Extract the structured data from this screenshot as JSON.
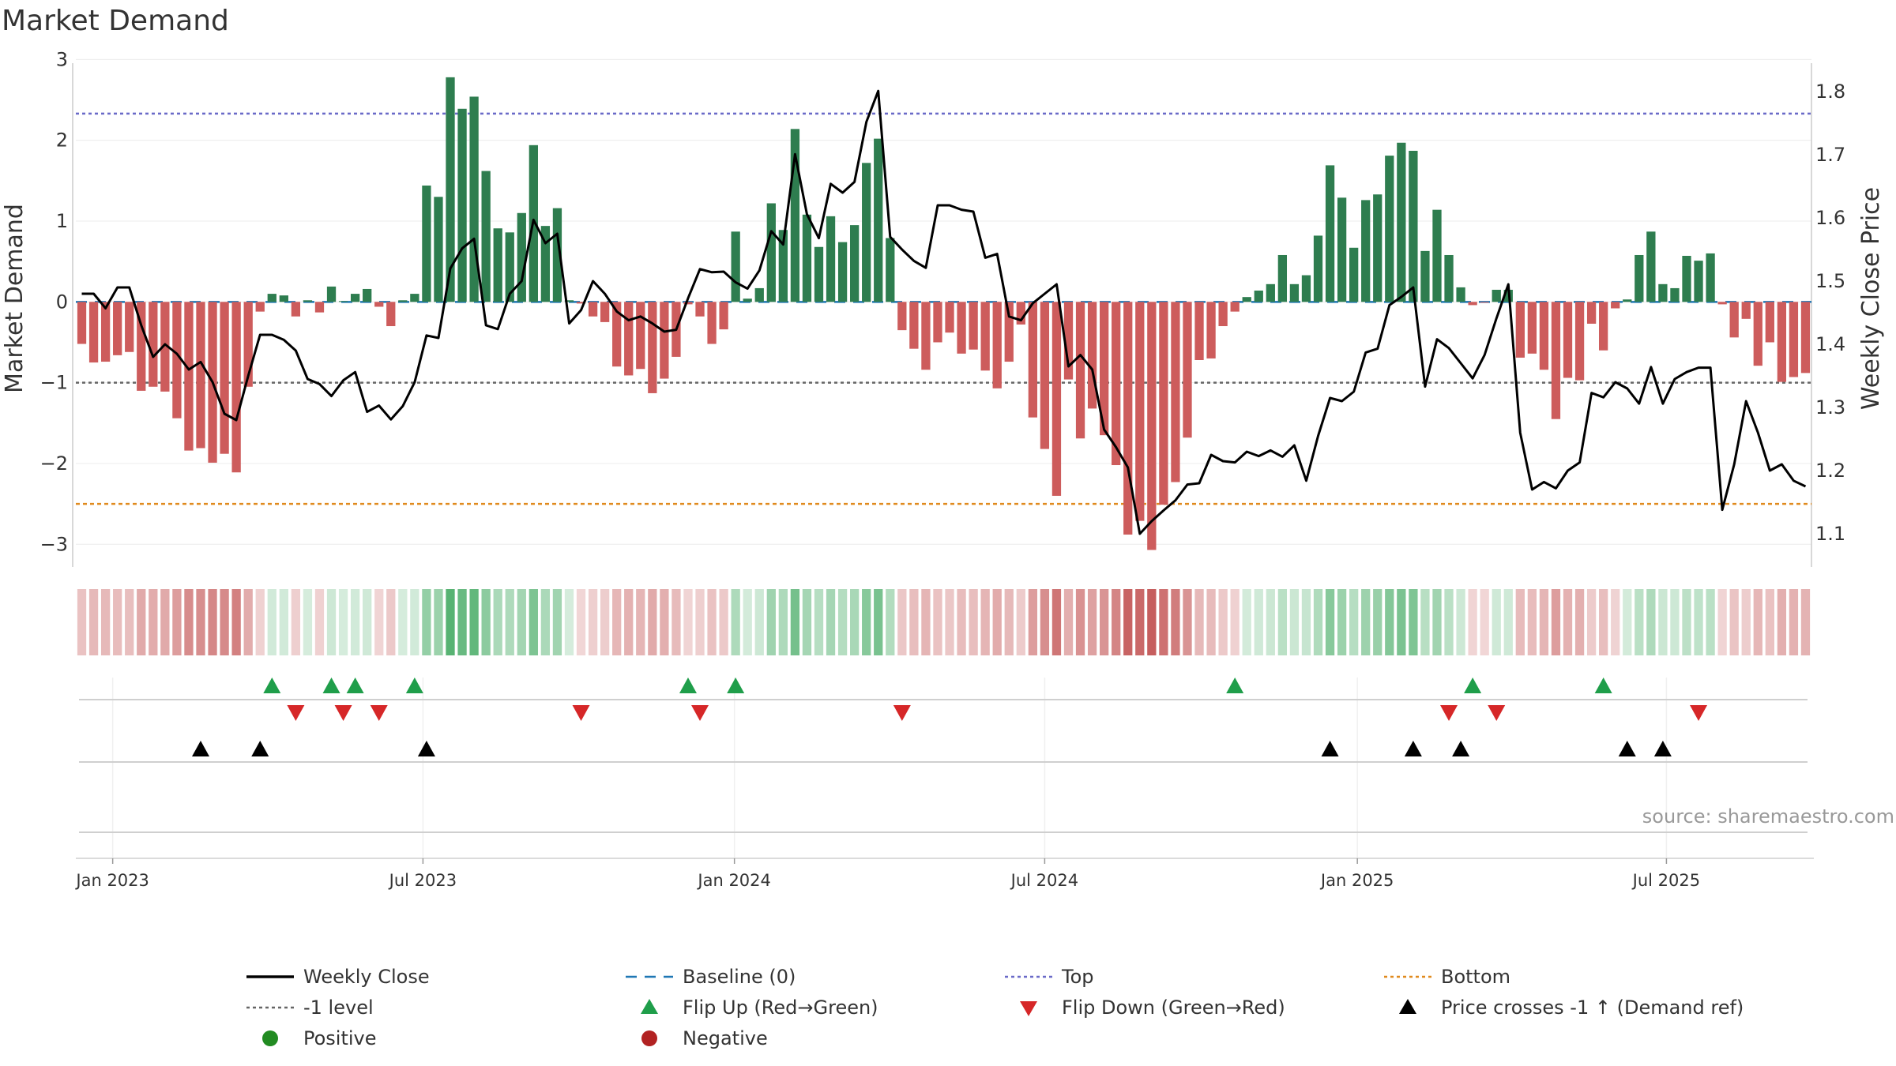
{
  "chart_data": {
    "type": "bar",
    "title": "Market Demand",
    "ylabel": "Market Demand",
    "y2label": "Weekly Close Price",
    "ylim": [
      -3.3,
      3.15
    ],
    "y2lim": [
      1.045,
      1.87
    ],
    "yticks": [
      3,
      2,
      1,
      0,
      -1,
      -2,
      -3
    ],
    "ytick_labels": [
      "3",
      "2",
      "1",
      "0",
      "−1",
      "−2",
      "−3"
    ],
    "y2ticks": [
      1.8,
      1.7,
      1.6,
      1.5,
      1.4,
      1.3,
      1.2,
      1.1
    ],
    "y2tick_labels": [
      "1.8",
      "1.7",
      "1.6",
      "1.5",
      "1.4",
      "1.3",
      "1.2",
      "1.1"
    ],
    "date_ticks": [
      {
        "label": "Jan 2023",
        "t": 2.6
      },
      {
        "label": "Jul 2023",
        "t": 28.7
      },
      {
        "label": "Jan 2024",
        "t": 54.9
      },
      {
        "label": "Jul 2024",
        "t": 81.0
      },
      {
        "label": "Jan 2025",
        "t": 107.3
      },
      {
        "label": "Jul 2025",
        "t": 133.3
      }
    ],
    "reference_lines": {
      "top": 2.33,
      "minus_one": -1,
      "bottom": -2.5,
      "baseline": 0
    },
    "demand": [
      -0.52,
      -0.75,
      -0.74,
      -0.66,
      -0.62,
      -1.1,
      -1.05,
      -1.11,
      -1.44,
      -1.84,
      -1.81,
      -1.99,
      -1.88,
      -2.11,
      -1.05,
      -0.12,
      0.1,
      0.08,
      -0.18,
      0.02,
      -0.13,
      0.19,
      0.01,
      0.1,
      0.16,
      -0.06,
      -0.3,
      0.02,
      0.1,
      1.44,
      1.3,
      2.78,
      2.39,
      2.54,
      1.62,
      0.91,
      0.86,
      1.1,
      1.94,
      0.94,
      1.16,
      0.02,
      -0.02,
      -0.18,
      -0.25,
      -0.8,
      -0.91,
      -0.83,
      -1.13,
      -0.95,
      -0.68,
      -0.03,
      -0.18,
      -0.52,
      -0.34,
      0.87,
      0.04,
      0.17,
      1.22,
      0.89,
      2.14,
      1.08,
      0.68,
      1.06,
      0.74,
      0.95,
      1.72,
      2.02,
      0.79,
      -0.35,
      -0.58,
      -0.84,
      -0.5,
      -0.38,
      -0.64,
      -0.59,
      -0.85,
      -1.07,
      -0.74,
      -0.28,
      -1.43,
      -1.82,
      -2.4,
      -0.96,
      -1.69,
      -1.32,
      -1.65,
      -2.02,
      -2.88,
      -2.71,
      -3.07,
      -2.51,
      -2.23,
      -1.68,
      -0.72,
      -0.7,
      -0.3,
      -0.12,
      0.06,
      0.14,
      0.22,
      0.58,
      0.22,
      0.33,
      0.82,
      1.69,
      1.29,
      0.67,
      1.26,
      1.33,
      1.81,
      1.97,
      1.87,
      0.63,
      1.14,
      0.58,
      0.18,
      -0.04,
      -0.01,
      0.15,
      0.15,
      -0.69,
      -0.64,
      -0.84,
      -1.45,
      -0.94,
      -0.97,
      -0.27,
      -0.6,
      -0.08,
      0.03,
      0.58,
      0.87,
      0.22,
      0.17,
      0.57,
      0.51,
      0.6,
      -0.03,
      -0.44,
      -0.21,
      -0.79,
      -0.5,
      -0.99,
      -0.93,
      -0.88
    ],
    "weekly_close": [
      1.48,
      1.48,
      1.457,
      1.49,
      1.49,
      1.43,
      1.38,
      1.4,
      1.385,
      1.36,
      1.372,
      1.34,
      1.29,
      1.28,
      1.35,
      1.415,
      1.415,
      1.407,
      1.39,
      1.345,
      1.337,
      1.318,
      1.343,
      1.356,
      1.293,
      1.303,
      1.281,
      1.302,
      1.34,
      1.414,
      1.41,
      1.52,
      1.552,
      1.567,
      1.43,
      1.424,
      1.48,
      1.5,
      1.597,
      1.56,
      1.575,
      1.433,
      1.454,
      1.5,
      1.48,
      1.452,
      1.438,
      1.444,
      1.433,
      1.42,
      1.423,
      1.473,
      1.519,
      1.514,
      1.515,
      1.498,
      1.488,
      1.517,
      1.579,
      1.558,
      1.701,
      1.606,
      1.568,
      1.654,
      1.64,
      1.657,
      1.752,
      1.801,
      1.57,
      1.55,
      1.532,
      1.521,
      1.62,
      1.62,
      1.613,
      1.61,
      1.537,
      1.543,
      1.444,
      1.438,
      1.465,
      1.48,
      1.495,
      1.365,
      1.383,
      1.36,
      1.265,
      1.237,
      1.205,
      1.1,
      1.12,
      1.137,
      1.153,
      1.178,
      1.18,
      1.225,
      1.215,
      1.213,
      1.23,
      1.223,
      1.232,
      1.222,
      1.24,
      1.184,
      1.255,
      1.315,
      1.31,
      1.325,
      1.387,
      1.393,
      1.462,
      1.475,
      1.49,
      1.333,
      1.408,
      1.394,
      1.37,
      1.346,
      1.383,
      1.441,
      1.495,
      1.26,
      1.17,
      1.182,
      1.172,
      1.2,
      1.213,
      1.323,
      1.316,
      1.34,
      1.33,
      1.306,
      1.364,
      1.306,
      1.345,
      1.356,
      1.363,
      1.363,
      1.138,
      1.21,
      1.31,
      1.26,
      1.2,
      1.21,
      1.184,
      1.175
    ],
    "flip_up_t": [
      16,
      21,
      23,
      28,
      51,
      55,
      97,
      117,
      128
    ],
    "flip_down_t": [
      18,
      22,
      25,
      42,
      52,
      69,
      115,
      119,
      136
    ],
    "price_cross_t": [
      10,
      15,
      29,
      105,
      112,
      116,
      130,
      133
    ],
    "legend": [
      {
        "label": "Weekly Close",
        "marker": "line",
        "color": "#000000"
      },
      {
        "label": "Baseline (0)",
        "marker": "dash",
        "color": "#1f77b4"
      },
      {
        "label": "Top",
        "marker": "dotted",
        "color": "#6a6ac8"
      },
      {
        "label": "Bottom",
        "marker": "dotted",
        "color": "#e08a1e"
      },
      {
        "label": "-1 level",
        "marker": "dotted",
        "color": "#666666"
      },
      {
        "label": "Flip Up (Red→Green)",
        "marker": "triangle-up",
        "color": "#1f9e4a"
      },
      {
        "label": "Flip Down (Green→Red)",
        "marker": "triangle-down",
        "color": "#d62728"
      },
      {
        "label": "Price crosses -1 ↑ (Demand ref)",
        "marker": "triangle-up",
        "color": "#000000"
      },
      {
        "label": "Positive",
        "marker": "circle",
        "color": "#228b22"
      },
      {
        "label": "Negative",
        "marker": "circle",
        "color": "#b22222"
      }
    ],
    "source": "source: sharemaestro.com"
  },
  "colors": {
    "positive_bar": "#2e7d4f",
    "negative_bar": "#cd5c5c",
    "grid": "#ececec",
    "axis": "#cccccc"
  }
}
